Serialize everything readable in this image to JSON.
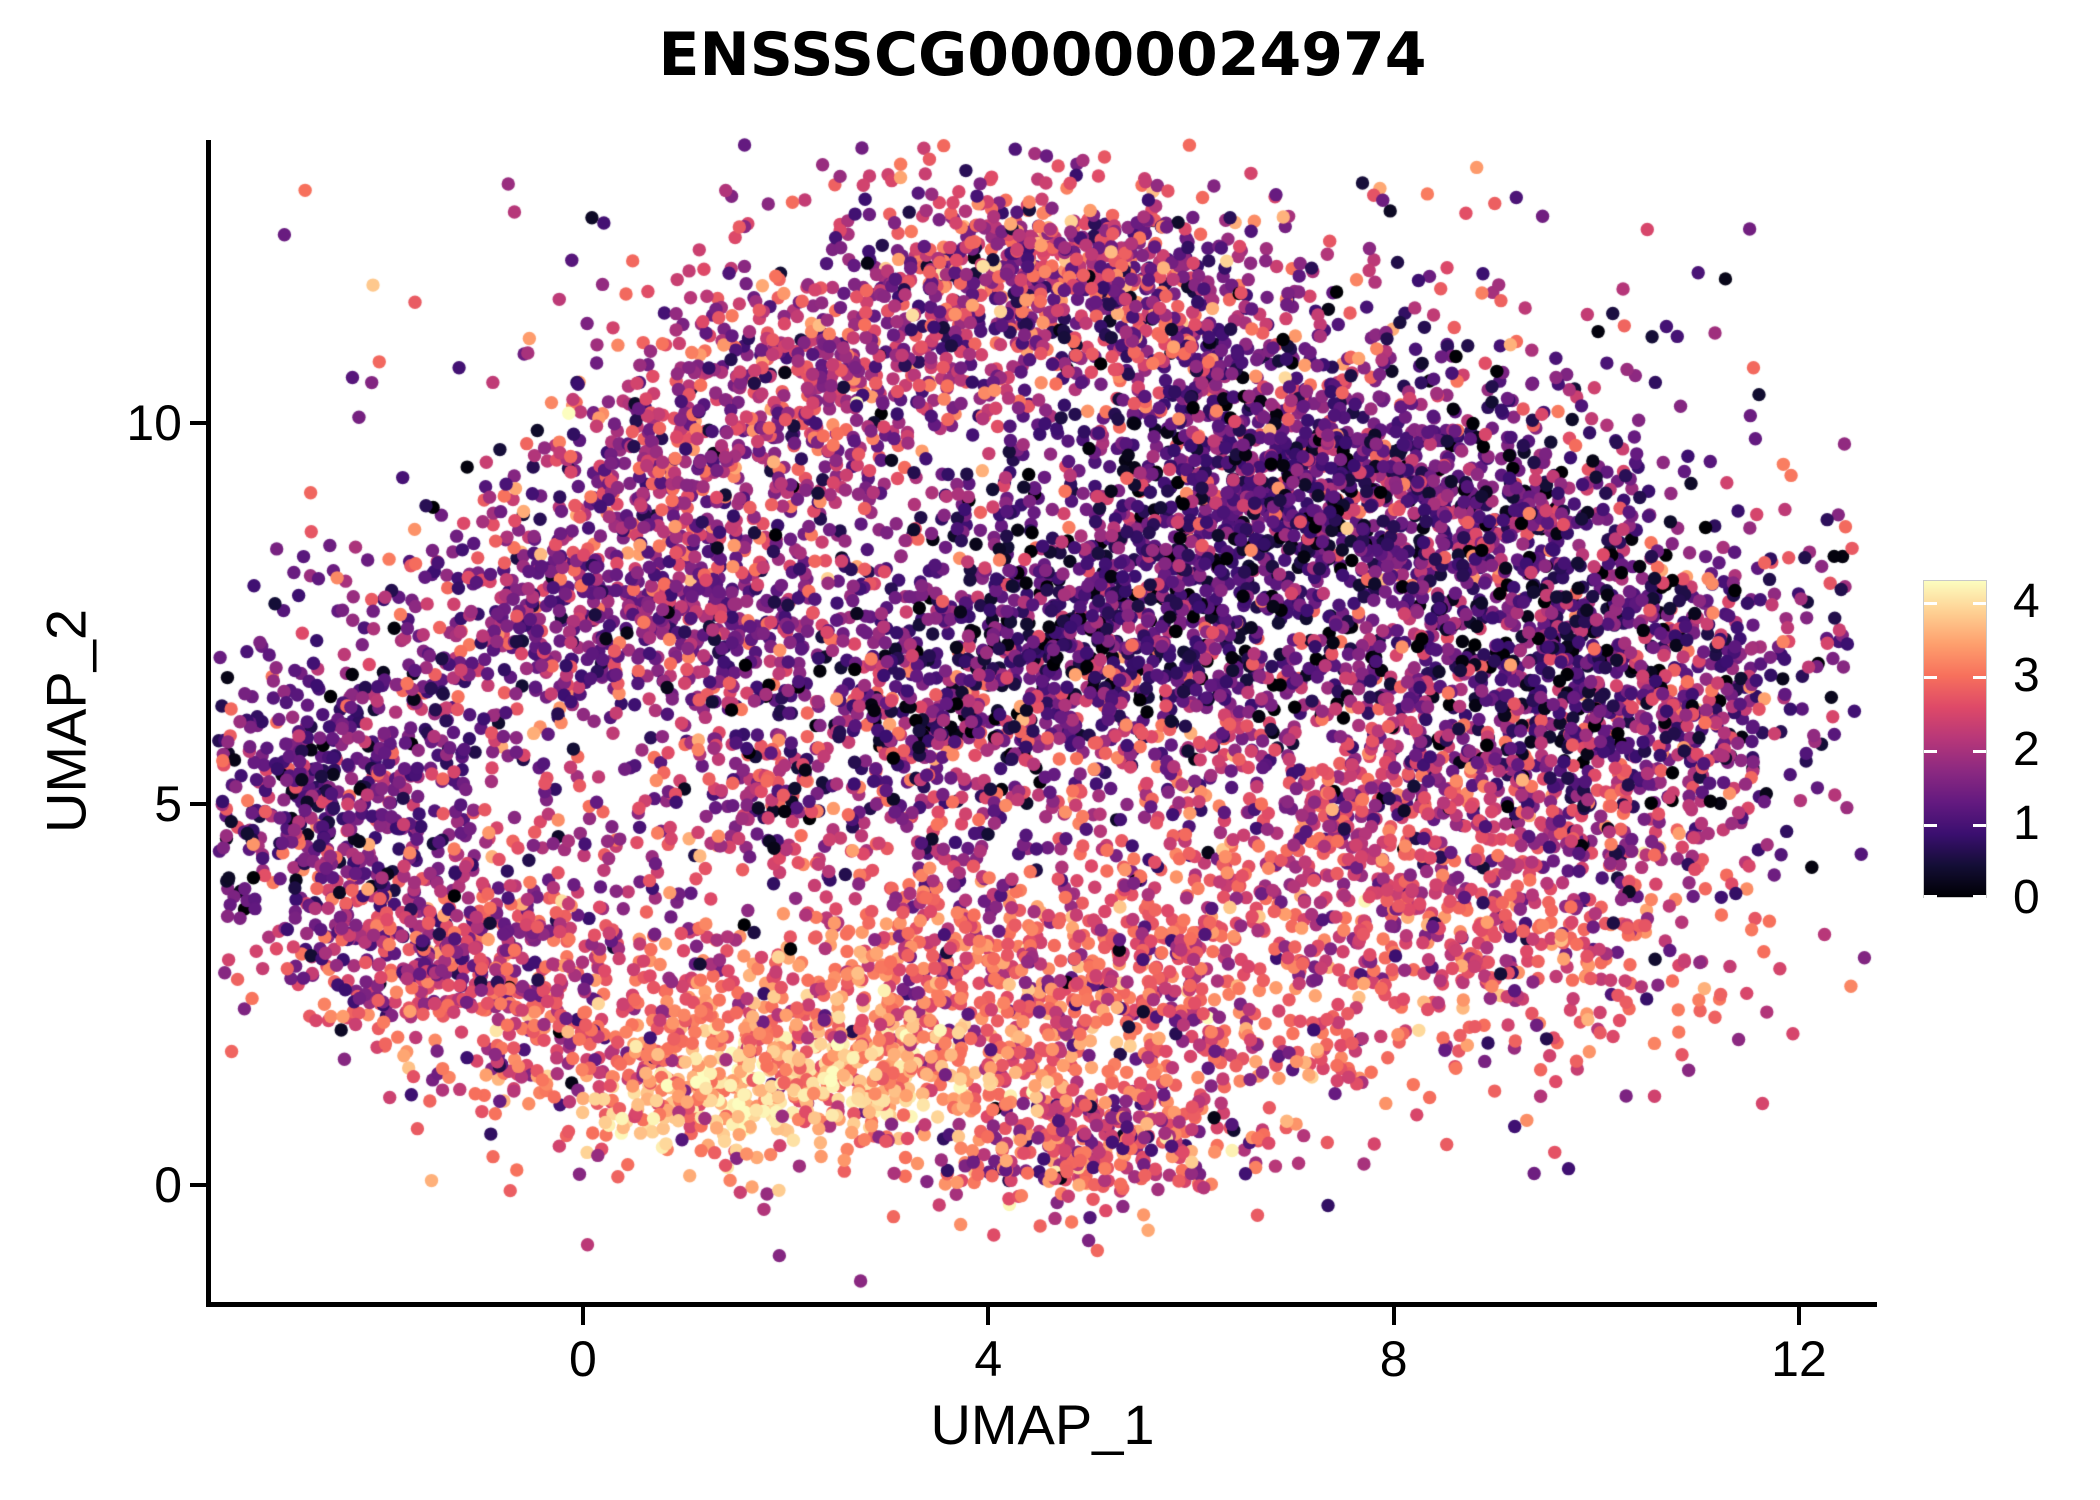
{
  "title": "ENSSSCG00000024974",
  "chart_data": {
    "type": "scatter",
    "title": "ENSSSCG00000024974",
    "xlabel": "UMAP_1",
    "ylabel": "UMAP_2",
    "x_ticks": [
      0,
      4,
      8,
      12
    ],
    "y_ticks": [
      0,
      5,
      10
    ],
    "xlim": [
      -3.68,
      12.75
    ],
    "ylim": [
      -1.55,
      13.71
    ],
    "grid": false,
    "legend_position": "right",
    "background_color": "#ffffff",
    "axis_color": "#000000",
    "colorbar": {
      "ticks": [
        0,
        1,
        2,
        3,
        4
      ],
      "vmin": 0,
      "vmax": 4.3,
      "colormap": "magma",
      "stops": [
        {
          "t": 0.0,
          "hex": "#000004"
        },
        {
          "t": 0.1,
          "hex": "#140e36"
        },
        {
          "t": 0.2,
          "hex": "#3b0f70"
        },
        {
          "t": 0.3,
          "hex": "#641a80"
        },
        {
          "t": 0.4,
          "hex": "#8c2981"
        },
        {
          "t": 0.5,
          "hex": "#b73779"
        },
        {
          "t": 0.6,
          "hex": "#de4968"
        },
        {
          "t": 0.7,
          "hex": "#f7705c"
        },
        {
          "t": 0.8,
          "hex": "#fe9f6d"
        },
        {
          "t": 0.9,
          "hex": "#fecf92"
        },
        {
          "t": 1.0,
          "hex": "#fcfdbf"
        }
      ]
    },
    "render": {
      "point_radius_px": 6.7,
      "seed": 12345
    },
    "clusters": [
      {
        "name": "apex_dense",
        "cx": 4.6,
        "cy": 12.1,
        "sx": 0.9,
        "sy": 0.55,
        "rot": -5,
        "n": 420,
        "values": [
          {
            "w": 0.5,
            "mean": 2.9,
            "sd": 0.45
          },
          {
            "w": 0.35,
            "mean": 1.3,
            "sd": 0.5
          },
          {
            "w": 0.15,
            "mean": 2.0,
            "sd": 0.6
          }
        ]
      },
      {
        "name": "top_dome_left",
        "cx": 2.6,
        "cy": 10.6,
        "sx": 1.3,
        "sy": 0.85,
        "rot": 25,
        "n": 520,
        "values": [
          {
            "w": 0.45,
            "mean": 2.7,
            "sd": 0.5
          },
          {
            "w": 0.55,
            "mean": 1.5,
            "sd": 0.55
          }
        ]
      },
      {
        "name": "top_dome_right",
        "cx": 6.2,
        "cy": 10.6,
        "sx": 1.3,
        "sy": 0.8,
        "rot": -25,
        "n": 480,
        "values": [
          {
            "w": 0.3,
            "mean": 2.6,
            "sd": 0.5
          },
          {
            "w": 0.7,
            "mean": 1.2,
            "sd": 0.5
          }
        ]
      },
      {
        "name": "upper_left_slope",
        "cx": 0.6,
        "cy": 9.3,
        "sx": 1.1,
        "sy": 0.7,
        "rot": 35,
        "n": 330,
        "values": [
          {
            "w": 0.5,
            "mean": 2.6,
            "sd": 0.5
          },
          {
            "w": 0.5,
            "mean": 1.5,
            "sd": 0.5
          }
        ]
      },
      {
        "name": "upper_left_band",
        "cx": 0.4,
        "cy": 7.5,
        "sx": 1.4,
        "sy": 0.6,
        "rot": 8,
        "n": 620,
        "values": [
          {
            "w": 0.78,
            "mean": 1.35,
            "sd": 0.45
          },
          {
            "w": 0.22,
            "mean": 2.6,
            "sd": 0.4
          }
        ]
      },
      {
        "name": "left_cluster",
        "cx": -2.45,
        "cy": 5.1,
        "sx": 0.75,
        "sy": 0.95,
        "rot": -15,
        "n": 520,
        "values": [
          {
            "w": 0.8,
            "mean": 1.25,
            "sd": 0.5
          },
          {
            "w": 0.12,
            "mean": 2.6,
            "sd": 0.35
          },
          {
            "w": 0.08,
            "mean": 0.15,
            "sd": 0.1
          }
        ]
      },
      {
        "name": "left_bridge",
        "cx": -1.5,
        "cy": 3.3,
        "sx": 0.75,
        "sy": 0.6,
        "rot": -30,
        "n": 230,
        "values": [
          {
            "w": 0.55,
            "mean": 2.3,
            "sd": 0.5
          },
          {
            "w": 0.45,
            "mean": 1.4,
            "sd": 0.5
          }
        ]
      },
      {
        "name": "central_dark",
        "cx": 5.4,
        "cy": 7.4,
        "sx": 2.1,
        "sy": 0.85,
        "rot": 28,
        "n": 1250,
        "values": [
          {
            "w": 0.8,
            "mean": 0.8,
            "sd": 0.45
          },
          {
            "w": 0.12,
            "mean": 1.8,
            "sd": 0.4
          },
          {
            "w": 0.08,
            "mean": 0.05,
            "sd": 0.08
          }
        ]
      },
      {
        "name": "upper_mid_dark",
        "cx": 6.6,
        "cy": 9.3,
        "sx": 1.5,
        "sy": 0.75,
        "rot": 15,
        "n": 520,
        "values": [
          {
            "w": 0.65,
            "mean": 1.1,
            "sd": 0.5
          },
          {
            "w": 0.25,
            "mean": 2.3,
            "sd": 0.5
          },
          {
            "w": 0.1,
            "mean": 0.1,
            "sd": 0.1
          }
        ]
      },
      {
        "name": "right_dark",
        "cx": 9.6,
        "cy": 6.8,
        "sx": 1.25,
        "sy": 1.15,
        "rot": -40,
        "n": 900,
        "values": [
          {
            "w": 0.7,
            "mean": 0.9,
            "sd": 0.5
          },
          {
            "w": 0.2,
            "mean": 2.0,
            "sd": 0.5
          },
          {
            "w": 0.1,
            "mean": 0.08,
            "sd": 0.1
          }
        ]
      },
      {
        "name": "right_mid",
        "cx": 8.2,
        "cy": 5.1,
        "sx": 1.5,
        "sy": 0.95,
        "rot": -20,
        "n": 520,
        "values": [
          {
            "w": 0.55,
            "mean": 1.9,
            "sd": 0.6
          },
          {
            "w": 0.45,
            "mean": 2.7,
            "sd": 0.4
          }
        ]
      },
      {
        "name": "mid_band",
        "cx": 3.3,
        "cy": 5.4,
        "sx": 2.3,
        "sy": 1.1,
        "rot": 5,
        "n": 680,
        "values": [
          {
            "w": 0.6,
            "mean": 2.5,
            "sd": 0.5
          },
          {
            "w": 0.4,
            "mean": 1.5,
            "sd": 0.6
          }
        ]
      },
      {
        "name": "bottom_left_arc",
        "cx": -0.8,
        "cy": 2.7,
        "sx": 1.25,
        "sy": 0.8,
        "rot": -25,
        "n": 480,
        "values": [
          {
            "w": 0.7,
            "mean": 2.8,
            "sd": 0.4
          },
          {
            "w": 0.3,
            "mean": 1.6,
            "sd": 0.6
          }
        ]
      },
      {
        "name": "bottom_mid",
        "cx": 2.3,
        "cy": 2.0,
        "sx": 1.6,
        "sy": 0.8,
        "rot": 10,
        "n": 650,
        "values": [
          {
            "w": 0.85,
            "mean": 3.1,
            "sd": 0.4
          },
          {
            "w": 0.15,
            "mean": 2.0,
            "sd": 0.5
          }
        ]
      },
      {
        "name": "pale_core",
        "cx": 2.1,
        "cy": 1.35,
        "sx": 1.0,
        "sy": 0.35,
        "rot": 12,
        "n": 300,
        "values": [
          {
            "w": 1.0,
            "mean": 3.9,
            "sd": 0.28
          }
        ]
      },
      {
        "name": "bottom_right_band",
        "cx": 5.4,
        "cy": 2.7,
        "sx": 1.7,
        "sy": 0.9,
        "rot": -8,
        "n": 700,
        "values": [
          {
            "w": 0.8,
            "mean": 2.9,
            "sd": 0.4
          },
          {
            "w": 0.2,
            "mean": 1.7,
            "sd": 0.5
          }
        ]
      },
      {
        "name": "bottom_lobe",
        "cx": 5.05,
        "cy": 0.55,
        "sx": 0.75,
        "sy": 0.45,
        "rot": 8,
        "n": 340,
        "values": [
          {
            "w": 0.7,
            "mean": 2.9,
            "sd": 0.5
          },
          {
            "w": 0.3,
            "mean": 1.5,
            "sd": 0.6
          }
        ]
      },
      {
        "name": "right_lower",
        "cx": 8.8,
        "cy": 3.5,
        "sx": 1.4,
        "sy": 0.8,
        "rot": -15,
        "n": 430,
        "values": [
          {
            "w": 0.85,
            "mean": 2.7,
            "sd": 0.4
          },
          {
            "w": 0.15,
            "mean": 1.5,
            "sd": 0.5
          }
        ]
      },
      {
        "name": "far_right",
        "cx": 10.9,
        "cy": 6.3,
        "sx": 0.65,
        "sy": 1.15,
        "rot": -25,
        "n": 240,
        "values": [
          {
            "w": 0.45,
            "mean": 1.3,
            "sd": 0.6
          },
          {
            "w": 0.35,
            "mean": 2.2,
            "sd": 0.5
          },
          {
            "w": 0.2,
            "mean": 2.9,
            "sd": 0.4
          }
        ]
      },
      {
        "name": "right_top_slope",
        "cx": 8.9,
        "cy": 8.9,
        "sx": 1.15,
        "sy": 0.75,
        "rot": -30,
        "n": 330,
        "values": [
          {
            "w": 0.7,
            "mean": 1.2,
            "sd": 0.5
          },
          {
            "w": 0.3,
            "mean": 2.4,
            "sd": 0.5
          }
        ]
      },
      {
        "name": "fill_sparse",
        "cx": 4.3,
        "cy": 6.8,
        "sx": 3.8,
        "sy": 2.9,
        "rot": 0,
        "n": 520,
        "values": [
          {
            "w": 0.5,
            "mean": 2.2,
            "sd": 0.7
          },
          {
            "w": 0.5,
            "mean": 1.3,
            "sd": 0.7
          }
        ]
      },
      {
        "name": "top_scatter",
        "cx": 4.5,
        "cy": 11.5,
        "sx": 2.5,
        "sy": 1.0,
        "rot": 0,
        "n": 260,
        "values": [
          {
            "w": 0.55,
            "mean": 2.6,
            "sd": 0.5
          },
          {
            "w": 0.45,
            "mean": 1.4,
            "sd": 0.6
          }
        ]
      }
    ]
  }
}
